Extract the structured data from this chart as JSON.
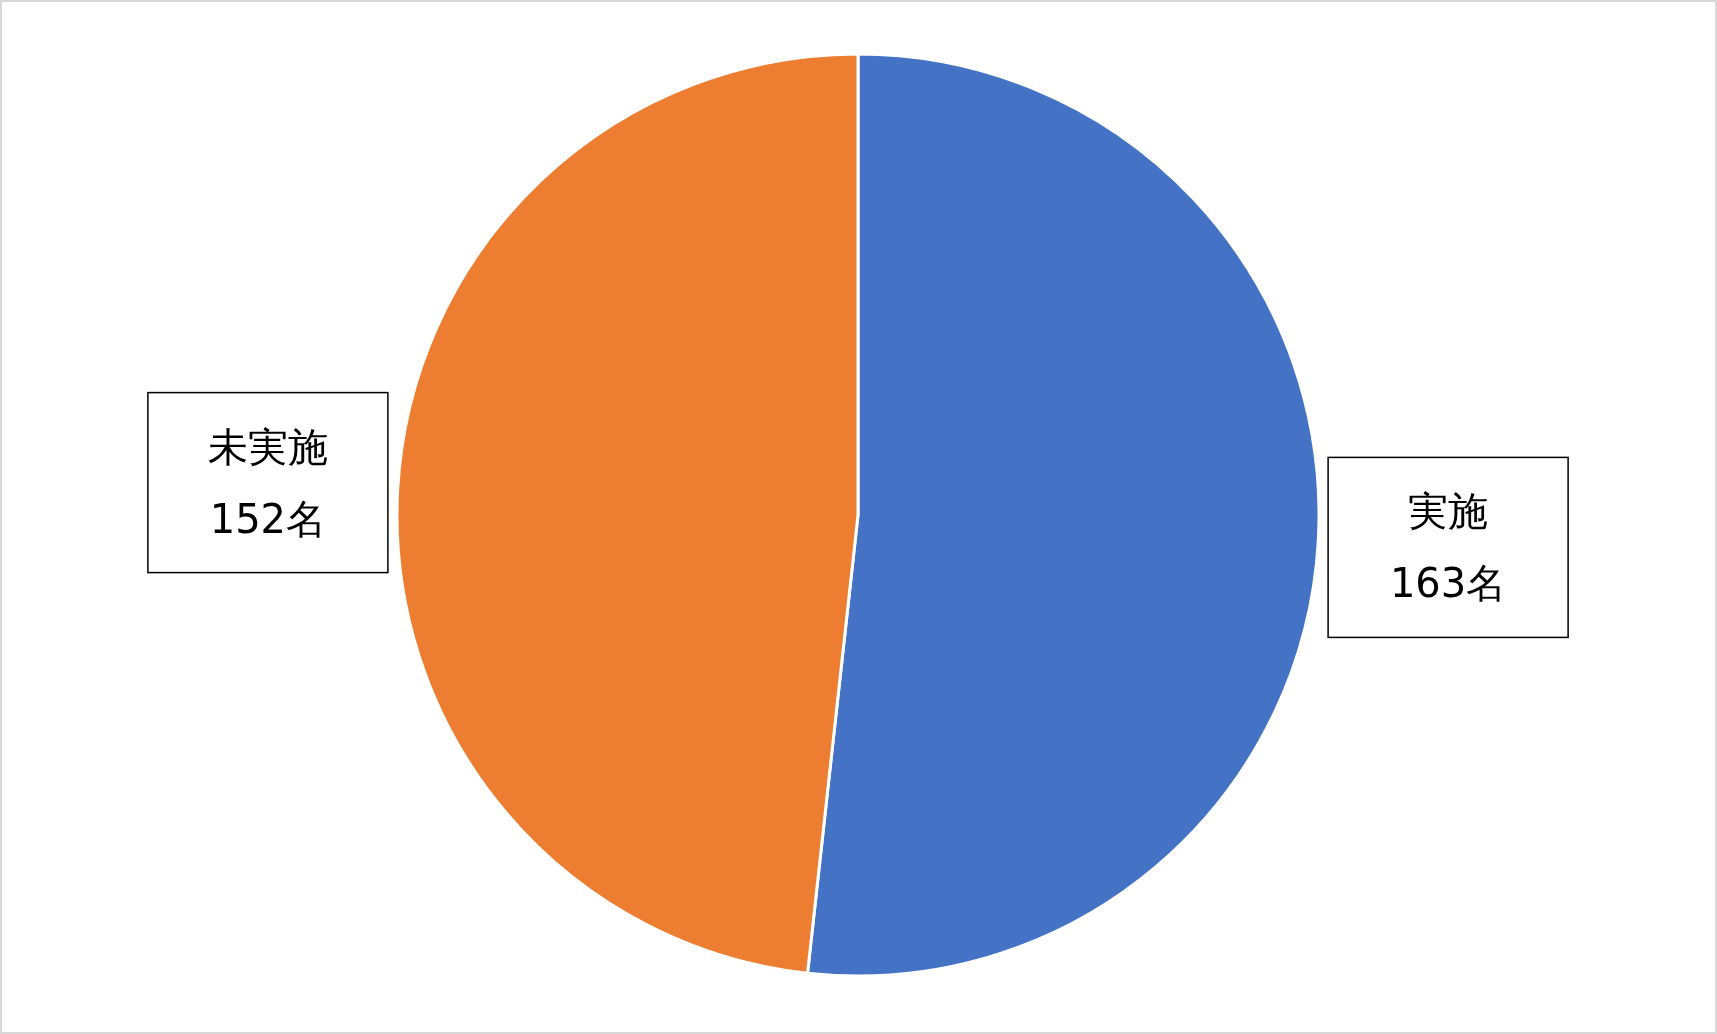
{
  "chart_data": {
    "type": "pie",
    "categories": [
      "実施",
      "未実施"
    ],
    "values": [
      163,
      152
    ],
    "colors": [
      "#4472c4",
      "#ed7d31"
    ],
    "value_labels": [
      "163名",
      "152名"
    ],
    "legend": false
  }
}
